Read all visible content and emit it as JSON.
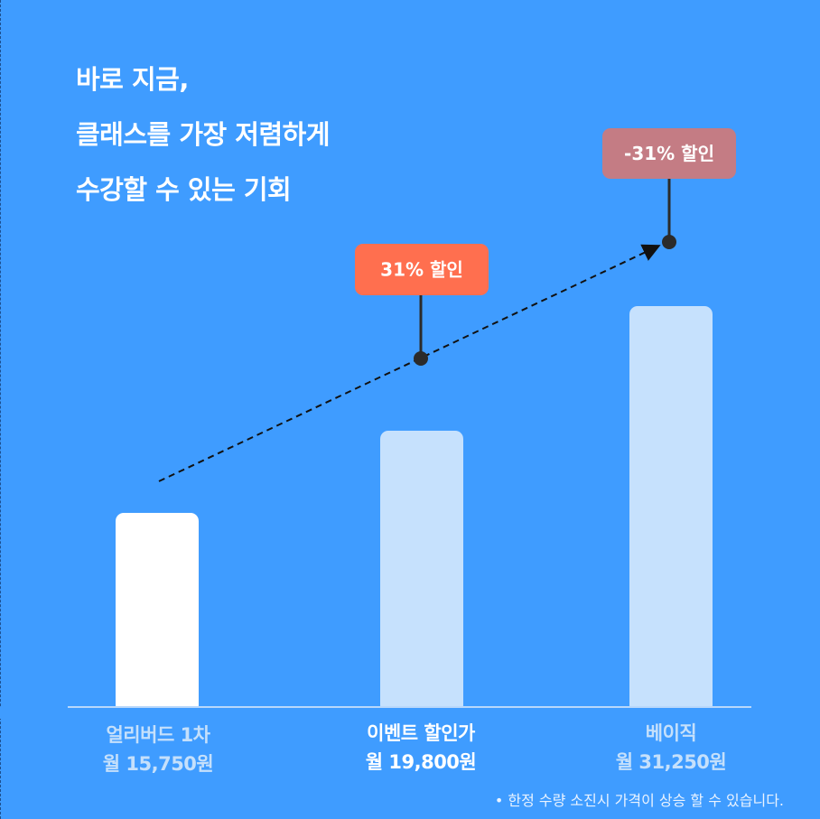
{
  "title": [
    "바로 지금,",
    "클래스를 가장 저렴하게",
    "수강할 수 있는 기회"
  ],
  "chart_data": {
    "type": "bar",
    "categories": [
      "얼리버드 1차",
      "이벤트 할인가",
      "베이직"
    ],
    "price_labels": [
      "월 15,750원",
      "월 19,800원",
      "월 31,250원"
    ],
    "values": [
      15750,
      19800,
      31250
    ],
    "highlight_index": 1,
    "annotations": [
      {
        "text": "31% 할인",
        "color": "#ff6f4f",
        "at_index": 1
      },
      {
        "text": "-31% 할인",
        "color": "#c47c84",
        "at_index": 2
      }
    ],
    "bar_colors": [
      "#ffffff",
      "#c6e1fd",
      "#c6e1fd"
    ],
    "trend_line": "dashed-arrow",
    "ylim": [
      0,
      31250
    ]
  },
  "footnote": "• 한정 수량 소진시 가격이 상승 할 수 있습니다."
}
